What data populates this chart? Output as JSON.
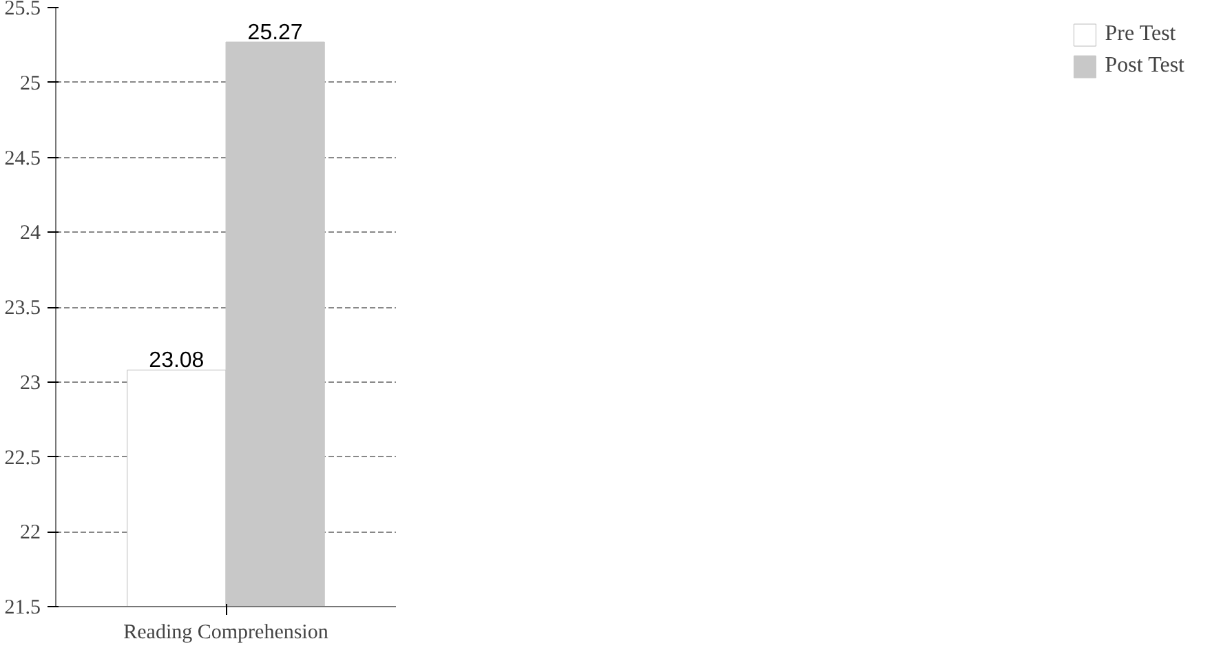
{
  "chart_data": {
    "type": "bar",
    "categories": [
      "Reading Comprehension"
    ],
    "series": [
      {
        "name": "Pre Test",
        "color": "#ffffff",
        "values": [
          23.08
        ]
      },
      {
        "name": "Post Test",
        "color": "#c8c8c8",
        "values": [
          25.27
        ]
      }
    ],
    "ylim": [
      21.5,
      25.5
    ],
    "yticks": [
      21.5,
      22,
      22.5,
      23,
      23.5,
      24,
      24.5,
      25,
      25.5
    ],
    "grid": "y",
    "legend": "right",
    "data_labels": true
  }
}
